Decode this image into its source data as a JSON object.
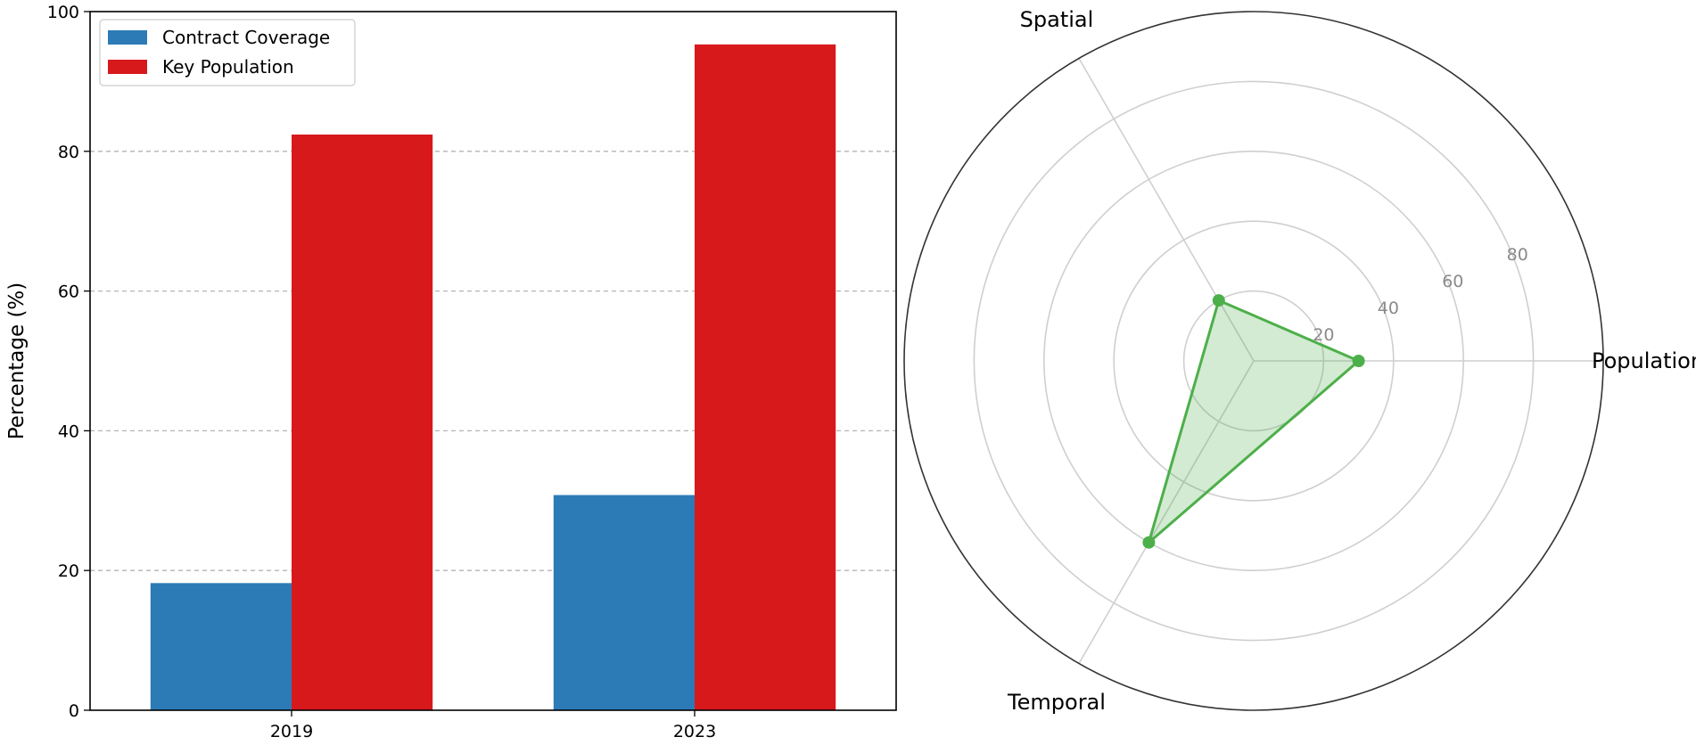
{
  "chart_data": [
    {
      "type": "bar",
      "title": "",
      "xlabel": "",
      "ylabel": "Percentage (%)",
      "categories": [
        "2019",
        "2023"
      ],
      "ylim": [
        0,
        100
      ],
      "yticks": [
        0,
        20,
        40,
        60,
        80,
        100
      ],
      "grid": "horizontal dashed",
      "legend_position": "top-left",
      "series": [
        {
          "name": "Contract Coverage",
          "color": "#2c7bb6",
          "values": [
            18.2,
            30.8
          ]
        },
        {
          "name": "Key Population",
          "color": "#d7191c",
          "values": [
            82.4,
            95.3
          ]
        }
      ]
    },
    {
      "type": "radar",
      "title": "",
      "axes": [
        "Population",
        "Spatial",
        "Temporal"
      ],
      "rlim": [
        0,
        100
      ],
      "rticks": [
        20,
        40,
        60,
        80
      ],
      "grid": true,
      "series": [
        {
          "color": "#4daf4a",
          "values": [
            30,
            20,
            60
          ]
        }
      ]
    }
  ]
}
